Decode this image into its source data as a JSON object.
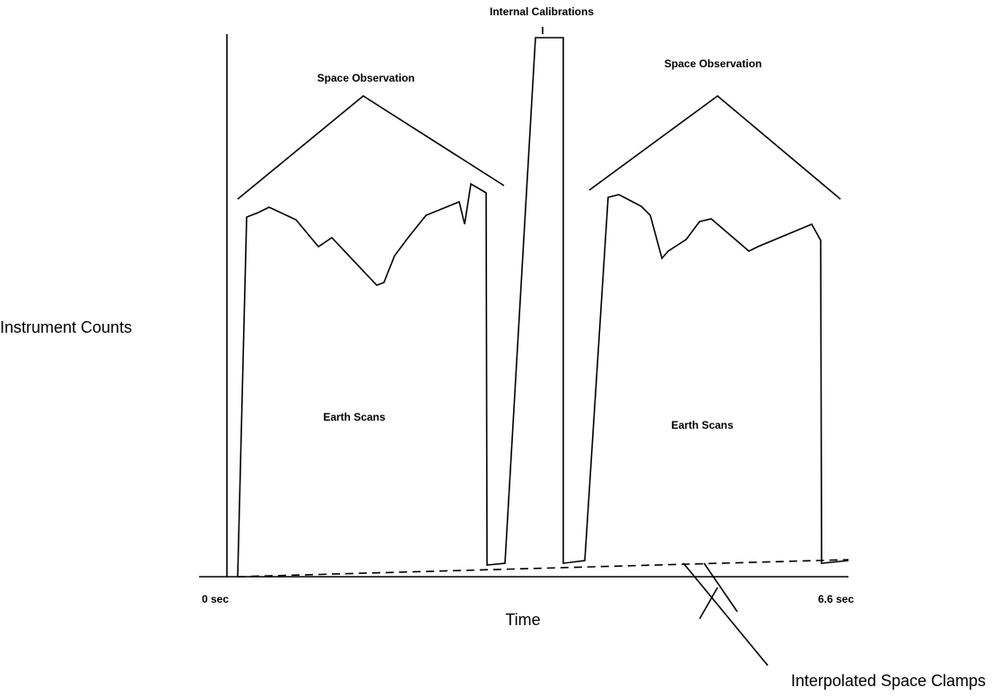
{
  "diagram": {
    "calibration_label": "Internal Calibrations",
    "space_labels": [
      "Space Observation",
      "Space Observation"
    ],
    "y_label": "Instrument Counts",
    "earth_labels": [
      "Earth Scans",
      "Earth Scans"
    ],
    "time_start": "0 sec",
    "time_end": "6.6 sec",
    "x_label": "Time",
    "clamp_label": "Interpolated Space Clamps"
  }
}
